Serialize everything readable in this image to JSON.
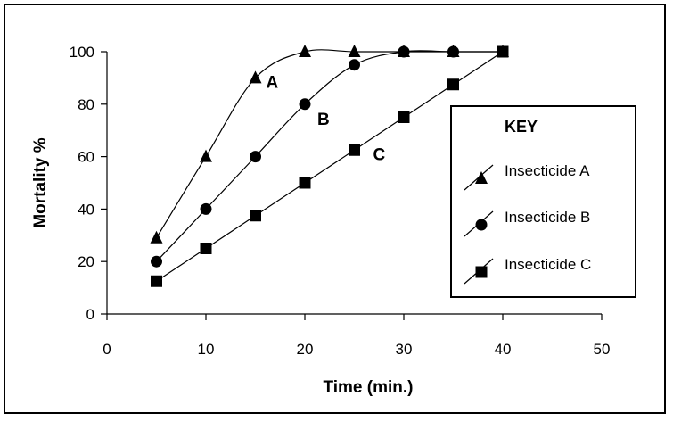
{
  "chart_data": {
    "type": "line",
    "xlabel": "Time (min.)",
    "ylabel": "Mortality %",
    "xlim": [
      0,
      50
    ],
    "ylim": [
      0,
      100
    ],
    "xticks": [
      0,
      10,
      20,
      30,
      40,
      50
    ],
    "yticks": [
      0,
      20,
      40,
      60,
      80,
      100
    ],
    "grid": false,
    "legend": {
      "title": "KEY",
      "placement": "right"
    },
    "series": [
      {
        "name": "Insecticide A",
        "marker": "triangle",
        "curve_label": "A",
        "x": [
          5,
          10,
          15,
          20,
          25,
          30,
          35,
          40
        ],
        "y": [
          29,
          60,
          90,
          100,
          100,
          100,
          100,
          100
        ]
      },
      {
        "name": "Insecticide B",
        "marker": "circle",
        "curve_label": "B",
        "x": [
          5,
          10,
          15,
          20,
          25,
          30,
          35,
          40
        ],
        "y": [
          20,
          40,
          60,
          80,
          95,
          100,
          100,
          100
        ]
      },
      {
        "name": "Insecticide C",
        "marker": "square",
        "curve_label": "C",
        "x": [
          5,
          10,
          15,
          20,
          25,
          30,
          35,
          40
        ],
        "y": [
          12.5,
          25,
          37.5,
          50,
          62.5,
          75,
          87.5,
          100
        ]
      }
    ]
  }
}
